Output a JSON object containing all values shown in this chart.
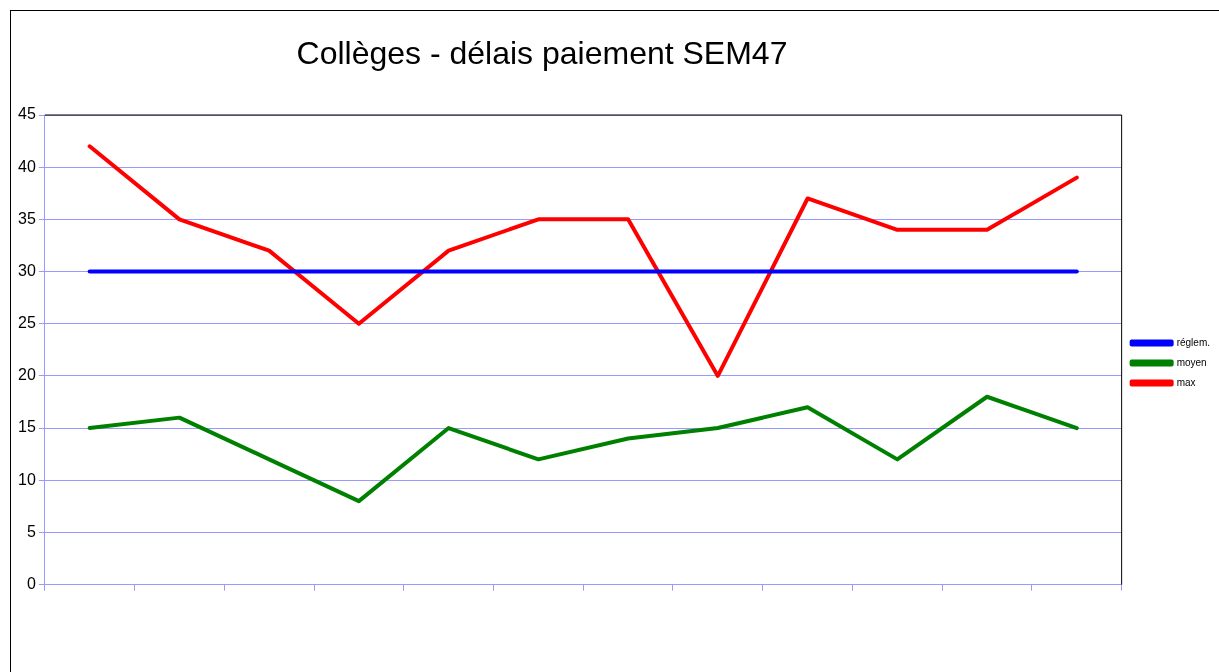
{
  "chart_data": {
    "type": "line",
    "title": "Collèges - délais paiement SEM47",
    "categories": [
      null,
      null,
      null,
      null,
      null,
      null,
      null,
      null,
      null,
      null,
      null,
      null
    ],
    "series": [
      {
        "name": "réglem.",
        "color": "#0000ff",
        "values": [
          30,
          30,
          30,
          30,
          30,
          30,
          30,
          30,
          30,
          30,
          30,
          30
        ]
      },
      {
        "name": "moyen",
        "color": "#008000",
        "values": [
          15,
          16,
          12,
          8,
          15,
          12,
          14,
          15,
          17,
          12,
          18,
          15
        ]
      },
      {
        "name": "max",
        "color": "#ff0000",
        "values": [
          42,
          35,
          32,
          25,
          32,
          35,
          35,
          20,
          37,
          34,
          34,
          39
        ]
      }
    ],
    "ylim": [
      0,
      45
    ],
    "yticks": [
      0,
      5,
      10,
      15,
      20,
      25,
      30,
      35,
      40,
      45
    ],
    "grid": "y",
    "legend": "right",
    "marker": "none",
    "line_style": "solid"
  }
}
